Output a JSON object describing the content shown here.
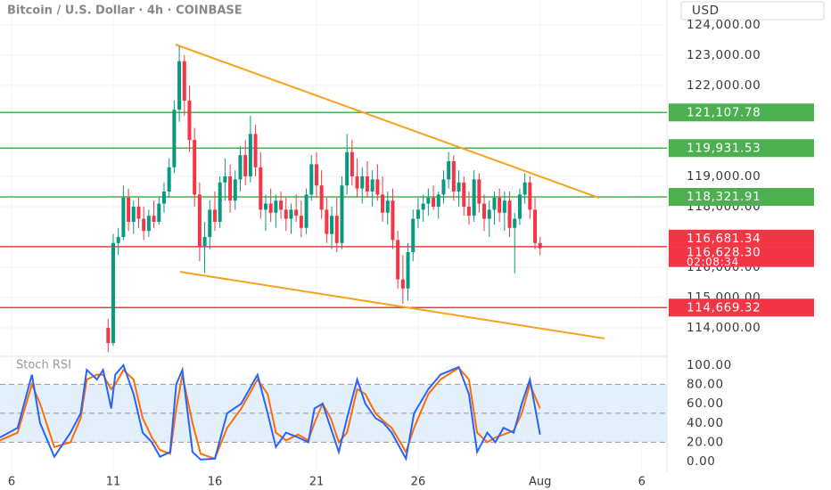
{
  "chart_data": {
    "type": "candlestick",
    "title": "Bitcoin / U.S. Dollar · 4h · COINBASE",
    "currency": "USD",
    "up_color": "#089981",
    "down_color": "#f23645",
    "xlim": [
      5.43,
      38.24
    ],
    "xticks": [
      6,
      11,
      16,
      21,
      26,
      {
        "value": 32,
        "label": "Aug"
      },
      {
        "value": 37,
        "label": "6"
      }
    ],
    "ylim": [
      113060,
      124820
    ],
    "yticks": [
      {
        "value": 114000,
        "label": "114,000.00"
      },
      {
        "value": 115000,
        "label": "115,000.00"
      },
      {
        "value": 116000,
        "label": "116,000.00"
      },
      {
        "value": 118000,
        "label": "118,000.00"
      },
      {
        "value": 119000,
        "label": "119,000.00"
      },
      {
        "value": 122000,
        "label": "122,000.00"
      },
      {
        "value": 123000,
        "label": "123,000.00"
      },
      {
        "value": 124000,
        "label": "124,000.00"
      }
    ],
    "levels": [
      {
        "value": 121107.78,
        "label": "121,107.78",
        "color": "#4caf50"
      },
      {
        "value": 119931.53,
        "label": "119,931.53",
        "color": "#4caf50"
      },
      {
        "value": 118321.91,
        "label": "118,321.91",
        "color": "#4caf50"
      },
      {
        "value": 116681.34,
        "label": "116,681.34",
        "color": "#f23645"
      },
      {
        "value": 114669.32,
        "label": "114,669.32",
        "color": "#f23645"
      }
    ],
    "last_price": {
      "value": 116628.3,
      "label": "116,628.30",
      "countdown": "02:08:34",
      "color": "#f23645"
    },
    "trendlines": [
      {
        "x": [
          14.07,
          34.9
        ],
        "values": [
          123350,
          118290
        ],
        "color": "#f7a21b"
      },
      {
        "x": [
          14.29,
          35.17
        ],
        "values": [
          115850,
          113650
        ],
        "color": "#f7a21b"
      }
    ],
    "x": [
      10.75,
      11,
      11.25,
      11.5,
      11.75,
      12,
      12.25,
      12.5,
      12.75,
      13,
      13.25,
      13.5,
      13.75,
      14,
      14.25,
      14.5,
      14.75,
      15,
      15.25,
      15.5,
      15.75,
      16,
      16.25,
      16.5,
      16.75,
      17,
      17.25,
      17.5,
      17.75,
      18,
      18.25,
      18.5,
      18.75,
      19,
      19.25,
      19.5,
      19.75,
      20,
      20.25,
      20.5,
      20.75,
      21,
      21.25,
      21.5,
      21.75,
      22,
      22.25,
      22.5,
      22.75,
      23,
      23.25,
      23.5,
      23.75,
      24,
      24.25,
      24.5,
      24.75,
      25,
      25.25,
      25.5,
      25.75,
      26,
      26.25,
      26.5,
      26.75,
      27,
      27.25,
      27.5,
      27.75,
      28,
      28.25,
      28.5,
      28.75,
      29,
      29.25,
      29.5,
      29.75,
      30,
      30.25,
      30.5,
      30.75,
      31,
      31.25,
      31.5,
      31.75,
      32
    ],
    "ohlc": [
      [
        114000,
        114300,
        113200,
        113500
      ],
      [
        113500,
        117100,
        113400,
        116800
      ],
      [
        116800,
        117300,
        116400,
        117000
      ],
      [
        117000,
        118700,
        116900,
        118300
      ],
      [
        118300,
        118600,
        117200,
        117500
      ],
      [
        117500,
        118200,
        117100,
        118000
      ],
      [
        118000,
        118300,
        117300,
        117600
      ],
      [
        117600,
        118000,
        116900,
        117200
      ],
      [
        117200,
        117900,
        117000,
        117700
      ],
      [
        117700,
        118200,
        117300,
        117500
      ],
      [
        117500,
        118300,
        117400,
        118100
      ],
      [
        118100,
        118800,
        117800,
        118500
      ],
      [
        118500,
        119600,
        118300,
        119300
      ],
      [
        119300,
        121500,
        119100,
        121200
      ],
      [
        121200,
        123300,
        120800,
        122800
      ],
      [
        122800,
        123000,
        121000,
        121500
      ],
      [
        121500,
        122000,
        119800,
        120200
      ],
      [
        120200,
        120600,
        118000,
        118400
      ],
      [
        118400,
        118800,
        116200,
        116700
      ],
      [
        116700,
        117500,
        115800,
        117000
      ],
      [
        117000,
        118200,
        116600,
        117900
      ],
      [
        117900,
        118500,
        117200,
        117500
      ],
      [
        117500,
        119000,
        117300,
        118800
      ],
      [
        118800,
        119600,
        118200,
        119000
      ],
      [
        119000,
        119400,
        117800,
        118200
      ],
      [
        118200,
        119200,
        117900,
        118900
      ],
      [
        118900,
        120000,
        118500,
        119700
      ],
      [
        119700,
        120200,
        118700,
        119000
      ],
      [
        119000,
        121000,
        118800,
        120400
      ],
      [
        120400,
        120700,
        119000,
        119300
      ],
      [
        119300,
        119800,
        117600,
        117900
      ],
      [
        117900,
        118400,
        117200,
        118100
      ],
      [
        118100,
        118600,
        117500,
        117800
      ],
      [
        117800,
        118400,
        117300,
        118200
      ],
      [
        118200,
        118500,
        117600,
        117900
      ],
      [
        117900,
        118300,
        117200,
        117600
      ],
      [
        117600,
        118100,
        117100,
        117900
      ],
      [
        117900,
        118400,
        117500,
        117700
      ],
      [
        117700,
        118200,
        117000,
        117300
      ],
      [
        117300,
        118600,
        117100,
        118400
      ],
      [
        118400,
        119700,
        118200,
        119400
      ],
      [
        119400,
        119800,
        118300,
        118700
      ],
      [
        118700,
        119200,
        117600,
        117900
      ],
      [
        117900,
        118300,
        116800,
        117100
      ],
      [
        117100,
        118000,
        116600,
        117700
      ],
      [
        117700,
        118300,
        116500,
        116800
      ],
      [
        116800,
        119000,
        116600,
        118700
      ],
      [
        118700,
        120400,
        118400,
        119800
      ],
      [
        119800,
        120200,
        118700,
        119000
      ],
      [
        119000,
        119600,
        118300,
        118600
      ],
      [
        118600,
        119300,
        118100,
        119000
      ],
      [
        119000,
        119500,
        118300,
        118500
      ],
      [
        118500,
        119200,
        118000,
        118900
      ],
      [
        118900,
        119400,
        118200,
        118400
      ],
      [
        118400,
        119000,
        117500,
        117800
      ],
      [
        117800,
        118500,
        117400,
        118200
      ],
      [
        118200,
        118600,
        116600,
        116900
      ],
      [
        116900,
        117200,
        115300,
        115600
      ],
      [
        115600,
        116400,
        114800,
        115300
      ],
      [
        115300,
        116800,
        114900,
        116500
      ],
      [
        116500,
        117900,
        116200,
        117600
      ],
      [
        117600,
        118300,
        117300,
        117900
      ],
      [
        117900,
        118400,
        117500,
        118100
      ],
      [
        118100,
        118600,
        117700,
        118300
      ],
      [
        118300,
        118700,
        117900,
        118000
      ],
      [
        118000,
        118500,
        117600,
        118400
      ],
      [
        118400,
        119200,
        118100,
        118900
      ],
      [
        118900,
        119800,
        118600,
        119500
      ],
      [
        119500,
        119700,
        118200,
        118500
      ],
      [
        118500,
        119200,
        118000,
        118800
      ],
      [
        118800,
        119000,
        117700,
        118000
      ],
      [
        118000,
        118500,
        117400,
        117700
      ],
      [
        117700,
        119200,
        117500,
        118900
      ],
      [
        118900,
        119100,
        117800,
        118100
      ],
      [
        118100,
        118400,
        117200,
        117600
      ],
      [
        117600,
        118200,
        117000,
        117900
      ],
      [
        117900,
        118500,
        117400,
        118300
      ],
      [
        118300,
        118600,
        117500,
        117800
      ],
      [
        117800,
        118500,
        117200,
        118200
      ],
      [
        118200,
        118500,
        117000,
        117300
      ],
      [
        117300,
        117800,
        115800,
        117600
      ],
      [
        117600,
        118600,
        117400,
        118400
      ],
      [
        118400,
        119100,
        118100,
        118800
      ],
      [
        118800,
        119000,
        117600,
        117900
      ],
      [
        117900,
        118300,
        116600,
        116800
      ],
      [
        116800,
        117000,
        116400,
        116628.3
      ]
    ],
    "indicator": {
      "title": "Stoch RSI",
      "ylim": [
        -11,
        109
      ],
      "yticks": [
        {
          "value": 0,
          "label": "0.00"
        },
        {
          "value": 20,
          "label": "20.00"
        },
        {
          "value": 40,
          "label": "40.00"
        },
        {
          "value": 60,
          "label": "60.00"
        },
        {
          "value": 80,
          "label": "80.00"
        },
        {
          "value": 100,
          "label": "100.00"
        }
      ],
      "levels": [
        20,
        50,
        80
      ],
      "band_color": "#e3f0fc",
      "x": [
        5.43,
        6.3,
        7,
        7.4,
        8.1,
        8.9,
        9.4,
        9.7,
        10.2,
        10.5,
        10.9,
        11.1,
        11.5,
        12,
        12.45,
        12.9,
        13.3,
        13.8,
        14.1,
        14.4,
        14.9,
        15.3,
        16,
        16.6,
        17.3,
        18.1,
        18.6,
        19,
        19.5,
        20.1,
        20.6,
        20.9,
        21.3,
        21.7,
        22.1,
        22.5,
        23,
        23.4,
        23.9,
        24.3,
        24.7,
        25.4,
        25.8,
        26.5,
        27.1,
        28,
        28.5,
        28.9,
        29.4,
        29.8,
        30.2,
        30.7,
        31.1,
        31.5,
        32
      ],
      "series": [
        {
          "color": "#2962ff",
          "values": [
            25,
            35,
            90,
            40,
            5,
            30,
            50,
            95,
            85,
            95,
            55,
            90,
            100,
            70,
            30,
            20,
            5,
            10,
            80,
            95,
            10,
            2,
            3,
            50,
            60,
            90,
            50,
            15,
            30,
            25,
            20,
            55,
            60,
            35,
            10,
            45,
            85,
            60,
            45,
            40,
            30,
            3,
            50,
            75,
            90,
            98,
            70,
            10,
            30,
            20,
            35,
            30,
            60,
            85,
            28
          ]
        },
        {
          "color": "#ff6d00",
          "values": [
            22,
            30,
            80,
            60,
            15,
            20,
            45,
            85,
            90,
            90,
            75,
            80,
            95,
            85,
            45,
            25,
            12,
            8,
            55,
            90,
            40,
            8,
            3,
            35,
            55,
            85,
            70,
            30,
            22,
            28,
            22,
            40,
            60,
            45,
            20,
            30,
            75,
            70,
            50,
            42,
            35,
            10,
            35,
            70,
            85,
            97,
            85,
            30,
            20,
            25,
            28,
            32,
            50,
            80,
            55
          ]
        }
      ]
    }
  }
}
